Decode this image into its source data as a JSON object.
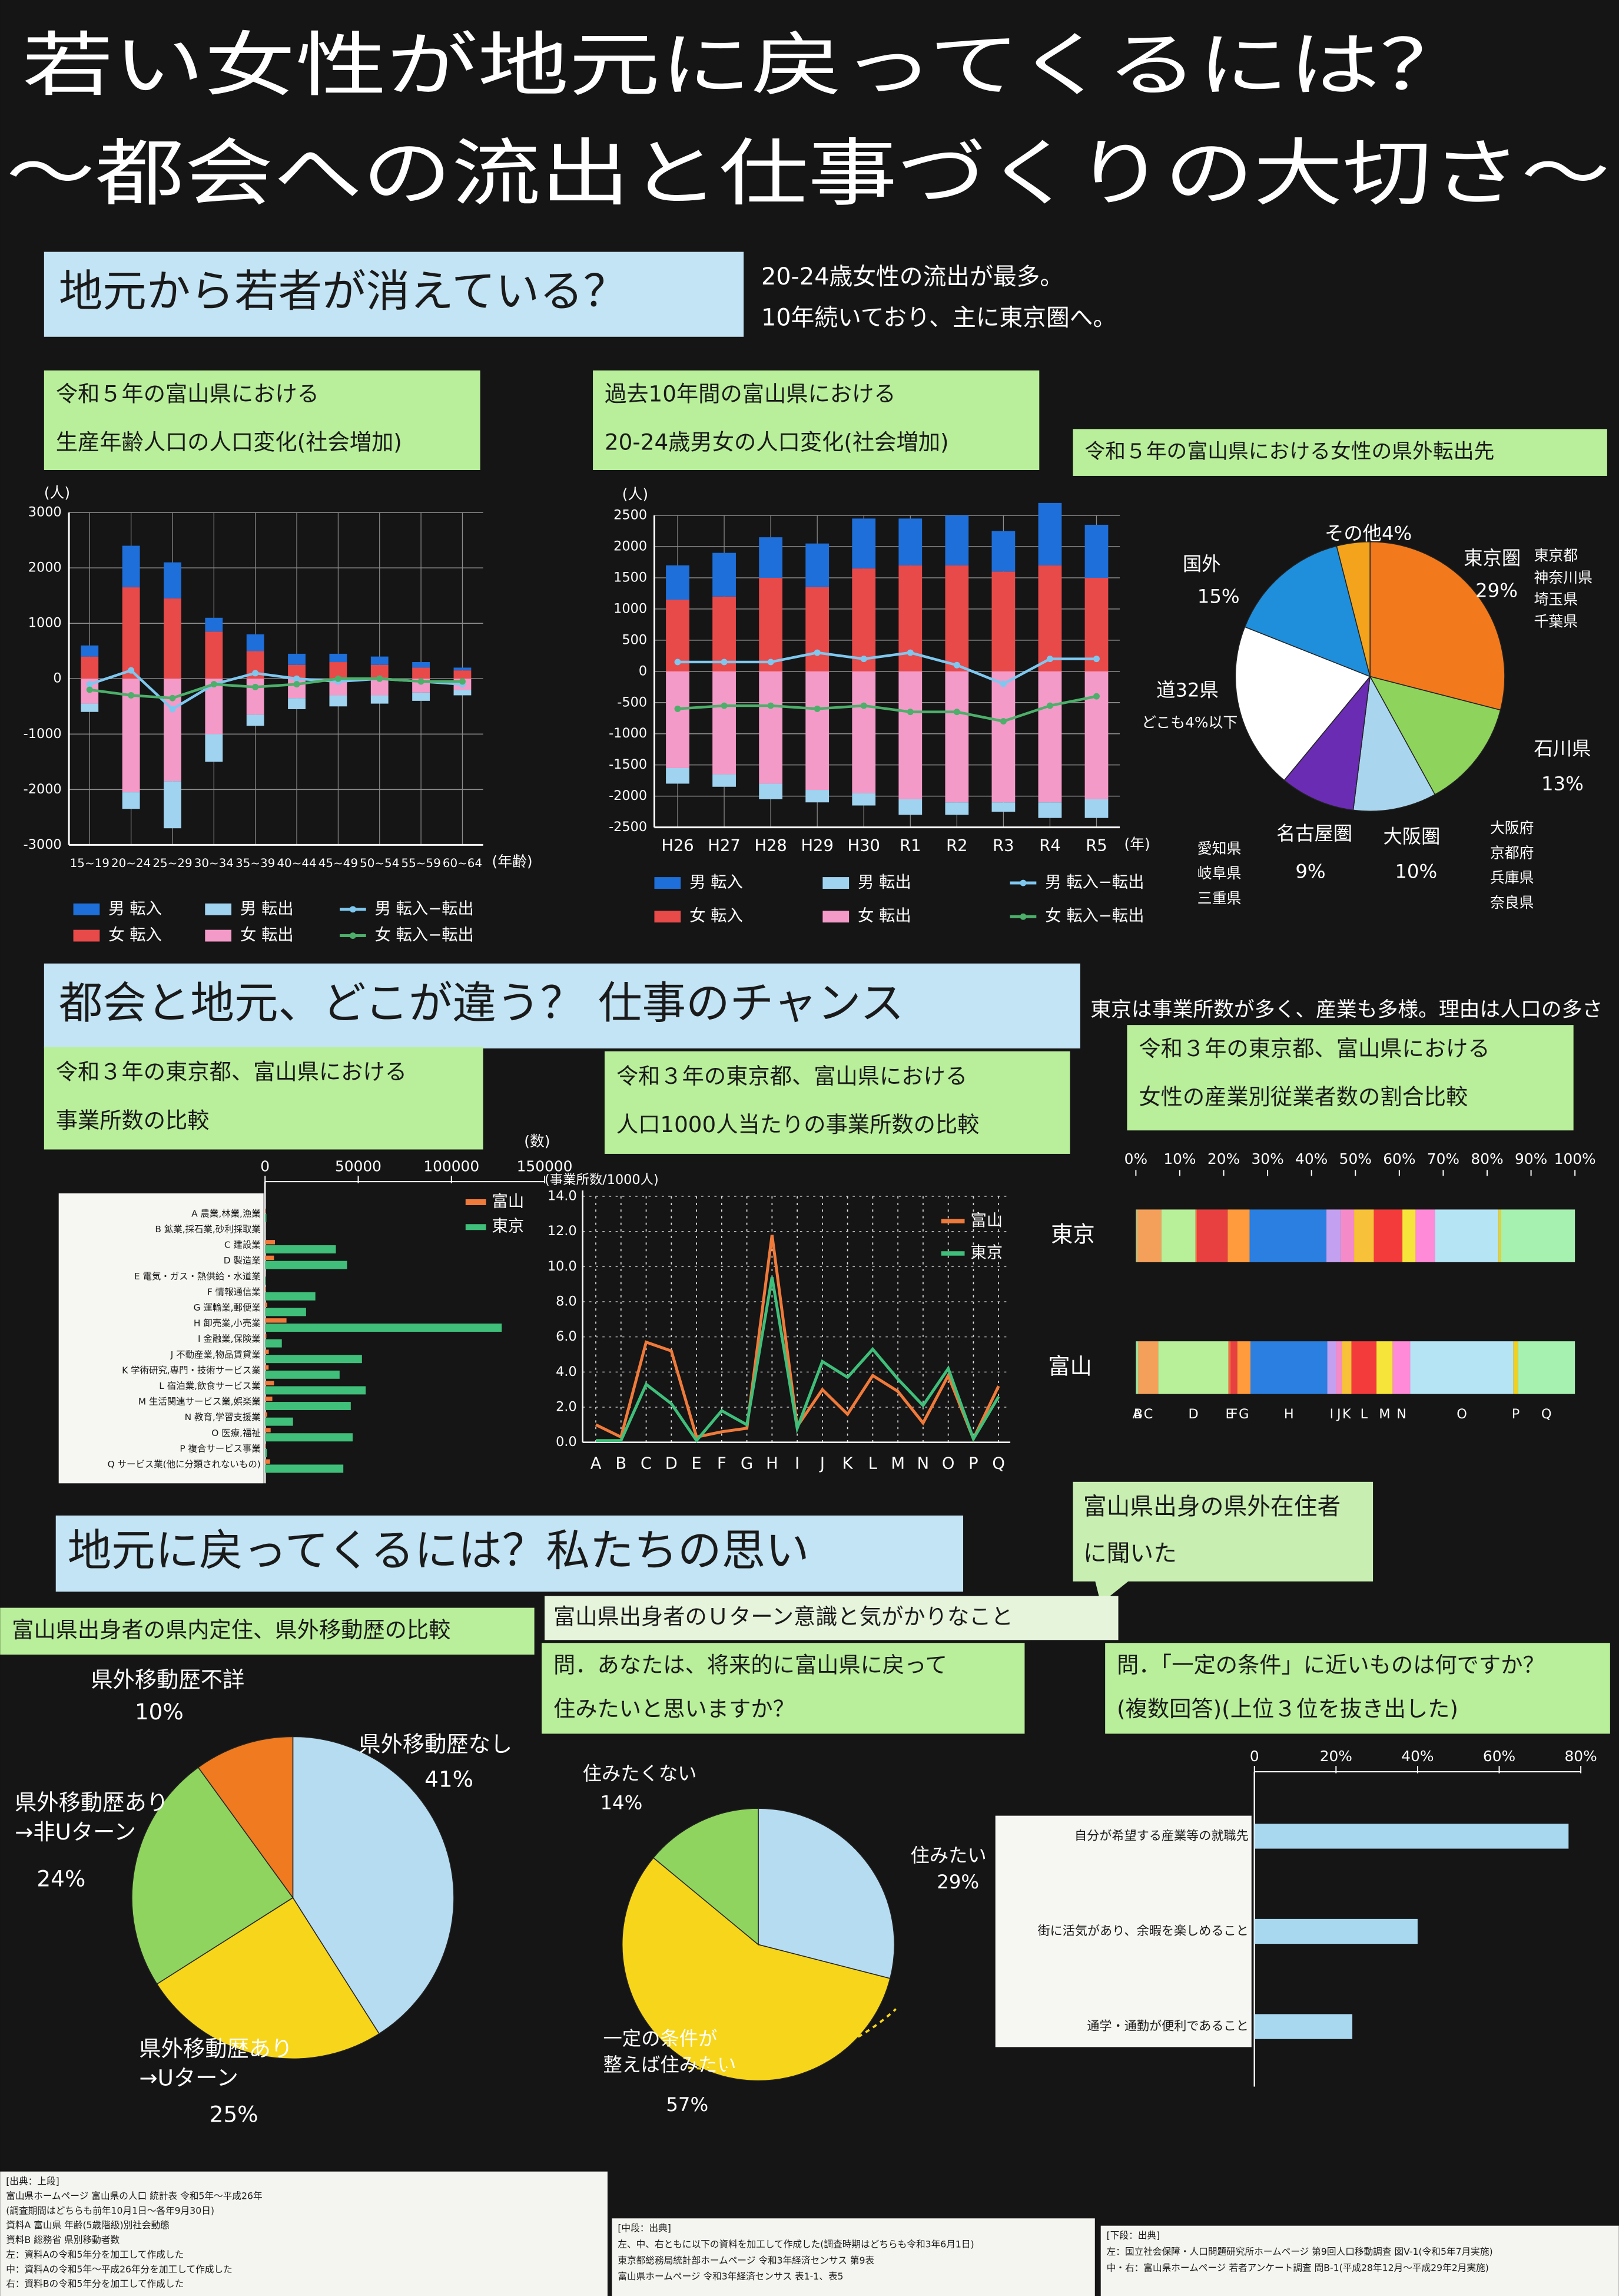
{
  "title": [
    "若い女性が地元に戻ってくるには？",
    "〜都会への流出と仕事づくりの大切さ〜"
  ],
  "sections": [
    {
      "heading": "地元から若者が消えている？",
      "note": [
        "20-24歳女性の流出が最多。",
        "10年続いており、主に東京圏へ。"
      ]
    },
    {
      "heading": "都会と地元、どこが違う？ 仕事のチャンス",
      "note": [
        "東京は事業所数が多く、産業も多様。理由は人口の多さ"
      ]
    },
    {
      "heading": "地元に戻ってくるには？私たちの思い",
      "note": [
        "富山県出身の県外在住者",
        "に聞いた"
      ],
      "subheading": "富山県出身者のＵターン意識と気がかりなこと"
    }
  ],
  "sources": [
    [
      "[出典：上段]",
      "富山県ホームページ 富山県の人口 統計表 令和5年〜平成26年",
      "(調査期間はどちらも前年10月1日〜各年9月30日)",
      "資料A 富山県 年齢(5歳階級)別社会動態",
      "資料B 総務省 県別移動者数",
      "左：資料Aの令和5年分を加工して作成した",
      "中：資料Aの令和5年〜平成26年分を加工して作成した",
      "右：資料Bの令和5年分を加工して作成した"
    ],
    [
      "[中段：出典]",
      "左、中、右ともに以下の資料を加工して作成した(調査時期はどちらも令和3年6月1日)",
      "東京都総務局統計部ホームページ 令和3年経済センサス 第9表",
      "富山県ホームページ 令和3年経済センサス 表1-1、表5"
    ],
    [
      "[下段：出典]",
      "左：国立社会保障・人口問題研究所ホームページ 第9回人口移動調査 図V-1(令和5年7月実施)",
      "中・右：富山県ホームページ 若者アンケート調査 問B-1(平成28年12月〜平成29年2月実施)"
    ]
  ],
  "chart_data": [
    {
      "type": "bar",
      "title": [
        "令和５年の富山県における",
        "生産年齢人口の人口変化(社会増加)"
      ],
      "y_label": "(人)",
      "x_label": "(年齢)",
      "grid": true,
      "categories": [
        "15~19",
        "20~24",
        "25~29",
        "30~34",
        "35~39",
        "40~44",
        "45~49",
        "50~54",
        "55~59",
        "60~64"
      ],
      "ylim": [
        -3000,
        3000
      ],
      "yticks": [
        -3000,
        -2000,
        -1000,
        0,
        1000,
        2000,
        3000
      ],
      "series": [
        {
          "name": "男 転入",
          "kind": "bar",
          "color": "#1e6fd9",
          "values": [
            200,
            750,
            650,
            250,
            300,
            200,
            150,
            150,
            100,
            50
          ]
        },
        {
          "name": "男 転出",
          "kind": "bar",
          "color": "#9fd3f0",
          "values": [
            -150,
            -300,
            -850,
            -500,
            -200,
            -200,
            -200,
            -150,
            -150,
            -100
          ]
        },
        {
          "name": "男 転入−転出",
          "kind": "line",
          "color": "#7ec8f0",
          "values": [
            -100,
            150,
            -550,
            -100,
            100,
            0,
            -50,
            0,
            -50,
            -100
          ]
        },
        {
          "name": "女 転入",
          "kind": "bar",
          "color": "#e84a4a",
          "values": [
            400,
            1650,
            1450,
            850,
            500,
            250,
            300,
            250,
            200,
            150
          ]
        },
        {
          "name": "女 転出",
          "kind": "bar",
          "color": "#f49ac8",
          "values": [
            -450,
            -2050,
            -1850,
            -1000,
            -650,
            -350,
            -300,
            -300,
            -250,
            -200
          ]
        },
        {
          "name": "女 転入−転出",
          "kind": "line",
          "color": "#4caf6a",
          "values": [
            -200,
            -300,
            -350,
            -100,
            -150,
            -100,
            0,
            0,
            -50,
            -50
          ]
        }
      ]
    },
    {
      "type": "bar",
      "title": [
        "過去10年間の富山県における",
        "20-24歳男女の人口変化(社会増加)"
      ],
      "y_label": "(人)",
      "x_label": "(年)",
      "grid": true,
      "categories": [
        "H26",
        "H27",
        "H28",
        "H29",
        "H30",
        "R1",
        "R2",
        "R3",
        "R4",
        "R5"
      ],
      "ylim": [
        -2500,
        2500
      ],
      "yticks": [
        -2500,
        -2000,
        -1500,
        -1000,
        -500,
        0,
        500,
        1000,
        1500,
        2000,
        2500
      ],
      "series": [
        {
          "name": "男 転入",
          "kind": "bar",
          "color": "#1e6fd9",
          "values": [
            550,
            700,
            650,
            700,
            800,
            750,
            800,
            650,
            1000,
            850
          ]
        },
        {
          "name": "男 転出",
          "kind": "bar",
          "color": "#9fd3f0",
          "values": [
            -250,
            -200,
            -250,
            -200,
            -200,
            -250,
            -200,
            -150,
            -250,
            -300
          ]
        },
        {
          "name": "男 転入−転出",
          "kind": "line",
          "color": "#7ec8f0",
          "values": [
            150,
            150,
            150,
            300,
            200,
            300,
            100,
            -200,
            200,
            200
          ]
        },
        {
          "name": "女 転入",
          "kind": "bar",
          "color": "#e84a4a",
          "values": [
            1150,
            1200,
            1500,
            1350,
            1650,
            1700,
            1700,
            1600,
            1700,
            1500
          ]
        },
        {
          "name": "女 転出",
          "kind": "bar",
          "color": "#f49ac8",
          "values": [
            -1550,
            -1650,
            -1800,
            -1900,
            -1950,
            -2050,
            -2100,
            -2100,
            -2100,
            -2050
          ]
        },
        {
          "name": "女 転入−転出",
          "kind": "line",
          "color": "#4caf6a",
          "values": [
            -600,
            -550,
            -550,
            -600,
            -550,
            -650,
            -650,
            -800,
            -550,
            -400
          ]
        }
      ]
    },
    {
      "type": "pie",
      "title": [
        "令和５年の富山県における女性の県外転出先"
      ],
      "categories": [
        "東京圏",
        "石川県",
        "大阪圏",
        "名古屋圏",
        "道32県",
        "国外",
        "その他"
      ],
      "values": [
        29,
        13,
        10,
        9,
        20,
        15,
        4
      ],
      "value_labels": [
        "29%",
        "13%",
        "10%",
        "9%",
        null,
        "15%",
        "4%"
      ],
      "colors": [
        "#f27a1c",
        "#8ed35c",
        "#a9d6ee",
        "#6a2cb3",
        "#ffffff",
        "#1f8fdc",
        "#f4a31c"
      ],
      "annotations": [
        "どこも4%以下",
        "東京都",
        "神奈川県",
        "埼玉県",
        "千葉県",
        "大阪府",
        "京都府",
        "兵庫県",
        "奈良県",
        "愛知県",
        "岐阜県",
        "三重県"
      ]
    },
    {
      "type": "barh",
      "title": [
        "令和３年の東京都、富山県における",
        "事業所数の比較"
      ],
      "x_label": "(数)",
      "categories": [
        "A 農業,林業,漁業",
        "B 鉱業,採石業,砂利採取業",
        "C 建設業",
        "D 製造業",
        "E 電気・ガス・熱供給・水道業",
        "F 情報通信業",
        "G 運輸業,郵便業",
        "H 卸売業,小売業",
        "I 金融業,保険業",
        "J 不動産業,物品賃貸業",
        "K 学術研究,専門・技術サービス業",
        "L 宿泊業,飲食サービス業",
        "M 生活関連サービス業,娯楽業",
        "N 教育,学習支援業",
        "O 医療,福祉",
        "P 複合サービス事業",
        "Q サービス業(他に分類されないもの)"
      ],
      "xlim": [
        0,
        150000
      ],
      "xticks": [
        0,
        50000,
        100000,
        150000
      ],
      "series": [
        {
          "name": "富山",
          "color": "#f07a3a",
          "values": [
            310,
            30,
            5300,
            4800,
            60,
            500,
            1200,
            11500,
            700,
            2000,
            1900,
            4800,
            3900,
            1200,
            3000,
            300,
            2700
          ]
        },
        {
          "name": "東京",
          "color": "#3fbf7a",
          "values": [
            700,
            30,
            38000,
            44000,
            400,
            27000,
            22000,
            127000,
            9000,
            52000,
            40000,
            54000,
            46000,
            15000,
            47000,
            1000,
            42000
          ]
        }
      ]
    },
    {
      "type": "line",
      "title": [
        "令和３年の東京都、富山県における",
        "人口1000人当たりの事業所数の比較"
      ],
      "y_label": "(事業所数/1000人)",
      "grid": true,
      "categories": [
        "A",
        "B",
        "C",
        "D",
        "E",
        "F",
        "G",
        "H",
        "I",
        "J",
        "K",
        "L",
        "M",
        "N",
        "O",
        "P",
        "Q"
      ],
      "ylim": [
        0,
        14
      ],
      "yticks": [
        {
          "value": 0,
          "label": "0.0"
        },
        {
          "value": 2,
          "label": "2.0"
        },
        {
          "value": 4,
          "label": "4.0"
        },
        {
          "value": 6,
          "label": "6.0"
        },
        {
          "value": 8,
          "label": "8.0"
        },
        {
          "value": 10,
          "label": "10.0"
        },
        {
          "value": 12,
          "label": "12.0"
        },
        {
          "value": 14,
          "label": "14.0"
        }
      ],
      "series": [
        {
          "name": "富山",
          "color": "#f07a3a",
          "values": [
            1.0,
            0.3,
            5.7,
            5.2,
            0.3,
            0.6,
            0.8,
            11.8,
            0.9,
            3.0,
            1.6,
            3.8,
            2.9,
            1.1,
            3.8,
            0.2,
            3.2
          ]
        },
        {
          "name": "東京",
          "color": "#3fbf7a",
          "values": [
            0.1,
            0.1,
            3.3,
            2.2,
            0.1,
            1.8,
            1.0,
            9.4,
            0.8,
            4.6,
            3.7,
            5.3,
            3.6,
            2.1,
            4.2,
            0.2,
            2.6
          ]
        }
      ]
    },
    {
      "type": "barh",
      "stacked": true,
      "title": [
        "令和３年の東京都、富山県における",
        "女性の産業別従業者数の割合比較"
      ],
      "categories": [
        "A",
        "B",
        "C",
        "D",
        "E",
        "F",
        "G",
        "H",
        "I",
        "J",
        "K",
        "L",
        "M",
        "N",
        "O",
        "P",
        "Q"
      ],
      "colors": [
        "#9fe0a0",
        "#f9e08a",
        "#f5a05a",
        "#b8f09a",
        "#ff6a3d",
        "#e84040",
        "#ff9a3d",
        "#2a7fe0",
        "#c4a0f0",
        "#f58ac8",
        "#f7c13a",
        "#f43b3b",
        "#f7e43a",
        "#ff8ad8",
        "#b5e4f5",
        "#f0d020",
        "#a6f0b0"
      ],
      "xlim": [
        0,
        100
      ],
      "xticks": [
        {
          "value": 0,
          "label": "0%"
        },
        {
          "value": 10,
          "label": "10%"
        },
        {
          "value": 20,
          "label": "20%"
        },
        {
          "value": 30,
          "label": "30%"
        },
        {
          "value": 40,
          "label": "40%"
        },
        {
          "value": 50,
          "label": "50%"
        },
        {
          "value": 60,
          "label": "60%"
        },
        {
          "value": 70,
          "label": "70%"
        },
        {
          "value": 80,
          "label": "80%"
        },
        {
          "value": 90,
          "label": "90%"
        },
        {
          "value": 100,
          "label": "100%"
        }
      ],
      "series": [
        {
          "name": "東京",
          "values": [
            0.2,
            0.1,
            5.5,
            7.8,
            0.3,
            7.0,
            5.0,
            17.5,
            3.3,
            3.0,
            4.5,
            6.5,
            3.0,
            4.4,
            14.5,
            0.5,
            16.9
          ]
        },
        {
          "name": "富山",
          "values": [
            0.5,
            0.1,
            4.5,
            16.0,
            0.5,
            1.5,
            3.0,
            17.5,
            2.0,
            1.3,
            2.2,
            5.7,
            3.7,
            4.0,
            23.5,
            1.0,
            13.0
          ]
        }
      ]
    },
    {
      "type": "pie",
      "title": [
        "富山県出身者の県内定住、県外移動歴の比較"
      ],
      "categories": [
        "県外移動歴なし",
        [
          "県外移動歴あり",
          "→Uターン"
        ],
        [
          "県外移動歴あり",
          "→非Uターン"
        ],
        "県外移動歴不詳"
      ],
      "values": [
        41,
        25,
        24,
        10
      ],
      "value_labels": [
        "41%",
        "25%",
        "24%",
        "10%"
      ],
      "colors": [
        "#b6dcf2",
        "#f7d51a",
        "#8fd45e",
        "#ef7a1f"
      ]
    },
    {
      "type": "pie",
      "title": [
        "問．あなたは、将来的に富山県に戻って",
        "住みたいと思いますか？"
      ],
      "categories": [
        "住みたい",
        [
          "一定の条件が",
          "整えば住みたい"
        ],
        "住みたくない"
      ],
      "values": [
        29,
        57,
        14
      ],
      "value_labels": [
        "29%",
        "57%",
        "14%"
      ],
      "colors": [
        "#b6dcf2",
        "#f7d51a",
        "#8fd45e"
      ]
    },
    {
      "type": "barh",
      "title": [
        "問．「一定の条件」に近いものは何ですか？",
        "(複数回答)(上位３位を抜き出した)"
      ],
      "categories": [
        "自分が希望する産業等の就職先",
        "街に活気があり、余暇を楽しめること",
        "通学・通勤が便利であること"
      ],
      "values": [
        77,
        40,
        24
      ],
      "color": "#a8d8f0",
      "xlim": [
        0,
        80
      ],
      "xticks": [
        0,
        {
          "value": 20,
          "label": "20%"
        },
        {
          "value": 40,
          "label": "40%"
        },
        {
          "value": 60,
          "label": "60%"
        },
        {
          "value": 80,
          "label": "80%"
        }
      ]
    }
  ]
}
